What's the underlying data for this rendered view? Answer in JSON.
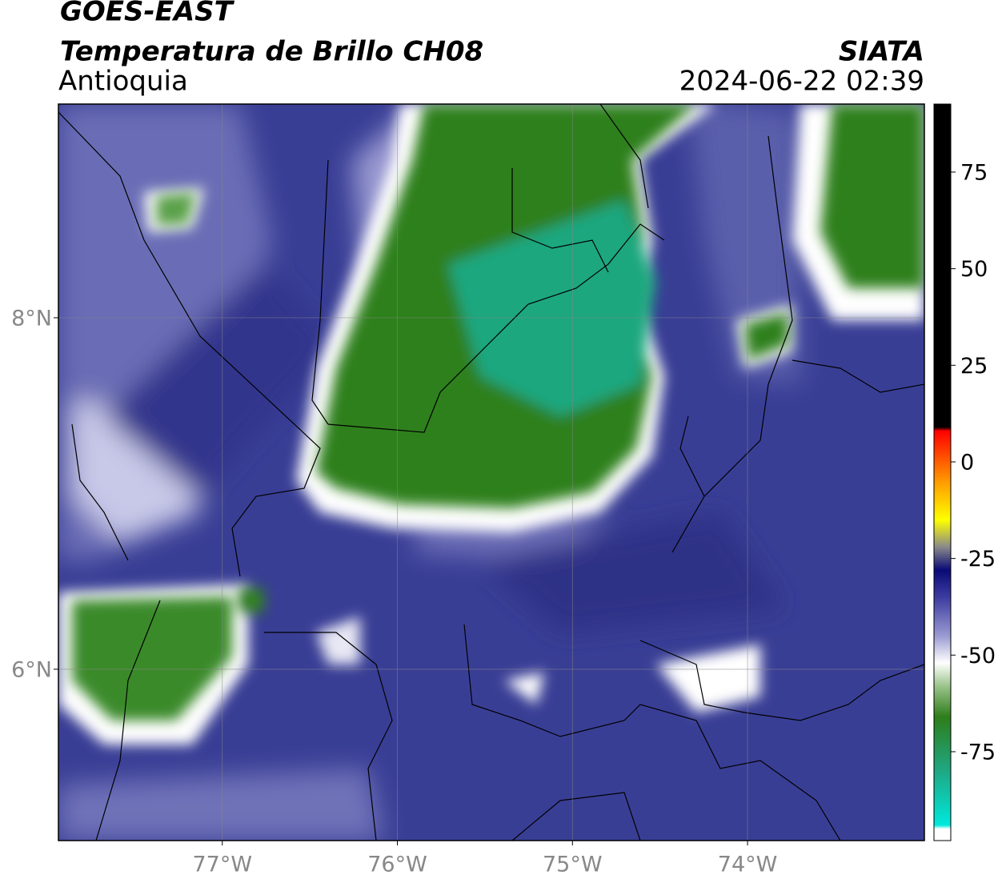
{
  "header": {
    "satellite": "GOES-EAST",
    "product": "Temperatura de Brillo CH08",
    "region": "Antioquia",
    "source": "SIATA",
    "datetime": "2024-06-22 02:39"
  },
  "map": {
    "xlim": [
      -77.936,
      -72.99
    ],
    "ylim": [
      5.025,
      9.216
    ],
    "grid": true,
    "xticks": [
      {
        "value": -77,
        "label": "77°W"
      },
      {
        "value": -76,
        "label": "76°W"
      },
      {
        "value": -75,
        "label": "75°W"
      },
      {
        "value": -74,
        "label": "74°W"
      }
    ],
    "yticks": [
      {
        "value": 8,
        "label": "8°N"
      },
      {
        "value": 6,
        "label": "6°N"
      }
    ]
  },
  "colorbar": {
    "ylim": [
      -98,
      92.6
    ],
    "yticks": [
      75,
      50,
      25,
      0,
      -25,
      -50,
      -75
    ],
    "colormap": [
      {
        "value": -98,
        "color": "#ffffff"
      },
      {
        "value": -95,
        "color": "#ffffff"
      },
      {
        "value": -94,
        "color": "#00e8dc"
      },
      {
        "value": -80,
        "color": "#1fa884"
      },
      {
        "value": -66,
        "color": "#2e7d1a"
      },
      {
        "value": -58,
        "color": "#9cc48c"
      },
      {
        "value": -52,
        "color": "#ffffff"
      },
      {
        "value": -45,
        "color": "#9a9ad2"
      },
      {
        "value": -35,
        "color": "#3c3ca0"
      },
      {
        "value": -28,
        "color": "#0a0a78"
      },
      {
        "value": -22,
        "color": "#8a8a8a"
      },
      {
        "value": -15,
        "color": "#ffff00"
      },
      {
        "value": -5,
        "color": "#ff9900"
      },
      {
        "value": 8,
        "color": "#ff0000"
      },
      {
        "value": 9,
        "color": "#000000"
      },
      {
        "value": 92.6,
        "color": "#000000"
      }
    ]
  }
}
